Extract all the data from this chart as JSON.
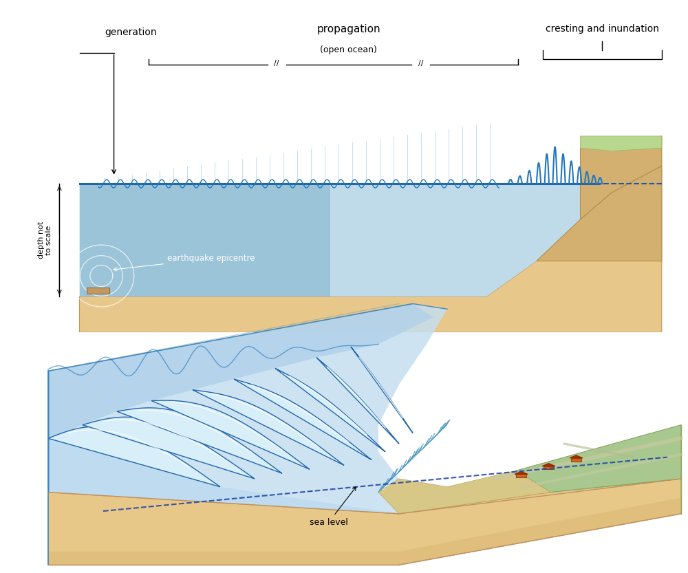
{
  "bg_color": "#ffffff",
  "top_panel": {
    "ocean_color": "#b8d8e8",
    "ocean_deep_color": "#7ab8d4",
    "seafloor_color": "#e8c88a",
    "land_color": "#d4b070",
    "shelf_color": "#c8d8b0",
    "water_line_color": "#2266aa",
    "wave_color": "#2277bb",
    "dashed_line_color": "#2255aa",
    "label_generation": "generation",
    "label_propagation": "propagation",
    "label_propagation_sub": "(open ocean)",
    "label_cresting": "cresting and inundation",
    "label_depth": "depth not\nto scale",
    "label_epicentre": "earthquake epicentre"
  },
  "bottom_panel": {
    "sea_level_label": "sea level",
    "wave_color": "#2277bb",
    "water_color": "#a8cce0",
    "seafloor_color": "#debb88",
    "land_color": "#c8a860",
    "green_land_color": "#a8c890",
    "house_color": "#cc6622",
    "sea_level_line_color": "#2244aa"
  }
}
